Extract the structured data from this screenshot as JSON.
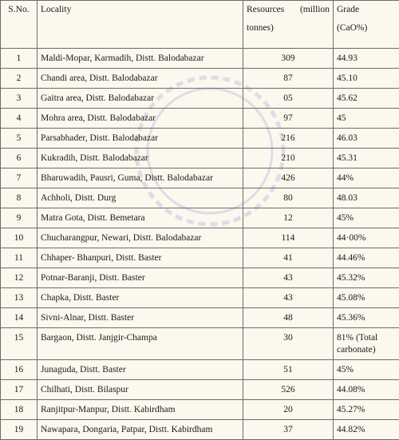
{
  "headers": {
    "sno": "S.No.",
    "locality": "Locality",
    "resources_word1": "Resources",
    "resources_word2": "(million",
    "resources_line2": "tonnes)",
    "grade_line1": "Grade",
    "grade_line2": "(CaO%)"
  },
  "rows": [
    {
      "sno": "1",
      "locality": "Maldi-Mopar, Karmadih, Distt. Balodabazar",
      "resources": "309",
      "grade": "44.93"
    },
    {
      "sno": "2",
      "locality": "Chandi area, Distt. Balodabazar",
      "resources": "87",
      "grade": "45.10"
    },
    {
      "sno": "3",
      "locality": "Gaitra area, Distt. Balodabazar",
      "resources": "05",
      "grade": "45.62"
    },
    {
      "sno": "4",
      "locality": "Mohra area, Distt. Balodabazar",
      "resources": "97",
      "grade": "45"
    },
    {
      "sno": "5",
      "locality": "Parsabhader, Distt. Balodabazar",
      "resources": "216",
      "grade": "46.03"
    },
    {
      "sno": "6",
      "locality": "Kukradih, Distt. Balodabazar",
      "resources": "210",
      "grade": "45.31"
    },
    {
      "sno": "7",
      "locality": "Bharuwadih, Pausri, Guma, Distt. Balodabazar",
      "resources": "426",
      "grade": "44%"
    },
    {
      "sno": "8",
      "locality": "Achholi, Distt. Durg",
      "resources": "80",
      "grade": "48.03"
    },
    {
      "sno": "9",
      "locality": "Matra Gota, Distt. Bemetara",
      "resources": "12",
      "grade": "45%"
    },
    {
      "sno": "10",
      "locality": "Chucharangpur, Newari, Distt. Balodabazar",
      "resources": "114",
      "grade": "44·00%"
    },
    {
      "sno": "11",
      "locality": "Chhaper- Bhanpuri, Distt. Baster",
      "resources": "41",
      "grade": "44.46%"
    },
    {
      "sno": "12",
      "locality": "Potnar-Baranji, Distt. Baster",
      "resources": "43",
      "grade": "45.32%"
    },
    {
      "sno": "13",
      "locality": "Chapka, Distt. Baster",
      "resources": "43",
      "grade": "45.08%"
    },
    {
      "sno": "14",
      "locality": "Sivni-Alnar, Distt. Baster",
      "resources": "48",
      "grade": "45.36%"
    },
    {
      "sno": "15",
      "locality": "Bargaon, Distt. Janjgir-Champa",
      "resources": "30",
      "grade": "81% (Total carbonate)"
    },
    {
      "sno": "16",
      "locality": "Junaguda, Distt. Baster",
      "resources": "51",
      "grade": "45%"
    },
    {
      "sno": "17",
      "locality": "Chilhati, Distt. Bilaspur",
      "resources": "526",
      "grade": "44.08%"
    },
    {
      "sno": "18",
      "locality": "Ranjitpur-Manpur, Distt. Kabirdham",
      "resources": "20",
      "grade": "45.27%"
    },
    {
      "sno": "19",
      "locality": "Nawapara, Dongaria, Patpar, Distt. Kabirdham",
      "resources": "37",
      "grade": "44.82%"
    }
  ]
}
